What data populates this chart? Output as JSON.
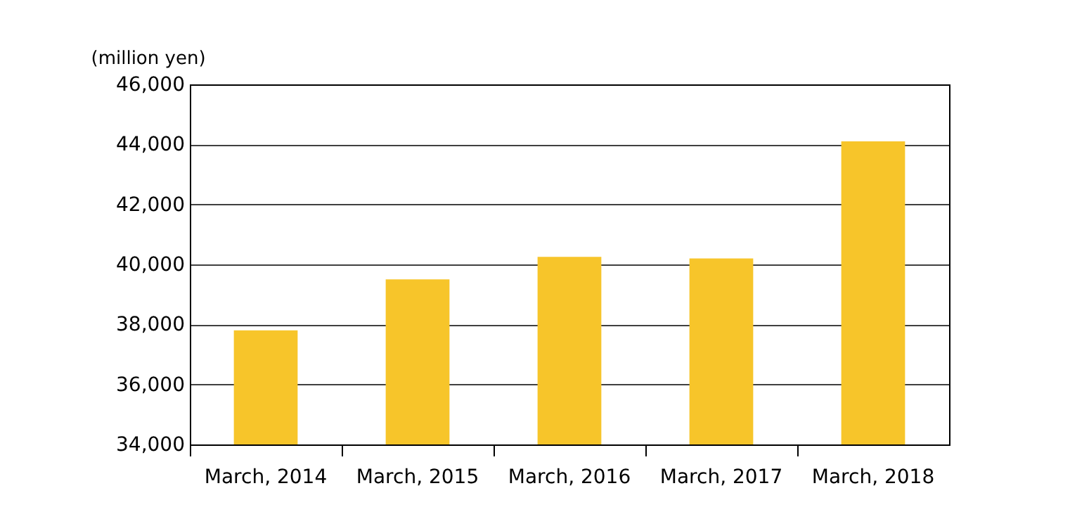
{
  "chart_data": {
    "type": "bar",
    "ylabel": "(million yen)",
    "categories": [
      "March, 2014",
      "March, 2015",
      "March, 2016",
      "March, 2017",
      "March, 2018"
    ],
    "values": [
      37800,
      39500,
      40250,
      40200,
      44100
    ],
    "color": "#f7c52a",
    "ylim": [
      34000,
      46000
    ],
    "yticks": [
      {
        "value": 34000,
        "label": "34,000"
      },
      {
        "value": 36000,
        "label": "36,000"
      },
      {
        "value": 38000,
        "label": "38,000"
      },
      {
        "value": 40000,
        "label": "40,000"
      },
      {
        "value": 42000,
        "label": "42,000"
      },
      {
        "value": 44000,
        "label": "44,000"
      },
      {
        "value": 46000,
        "label": "46,000"
      }
    ],
    "grid": "y"
  }
}
